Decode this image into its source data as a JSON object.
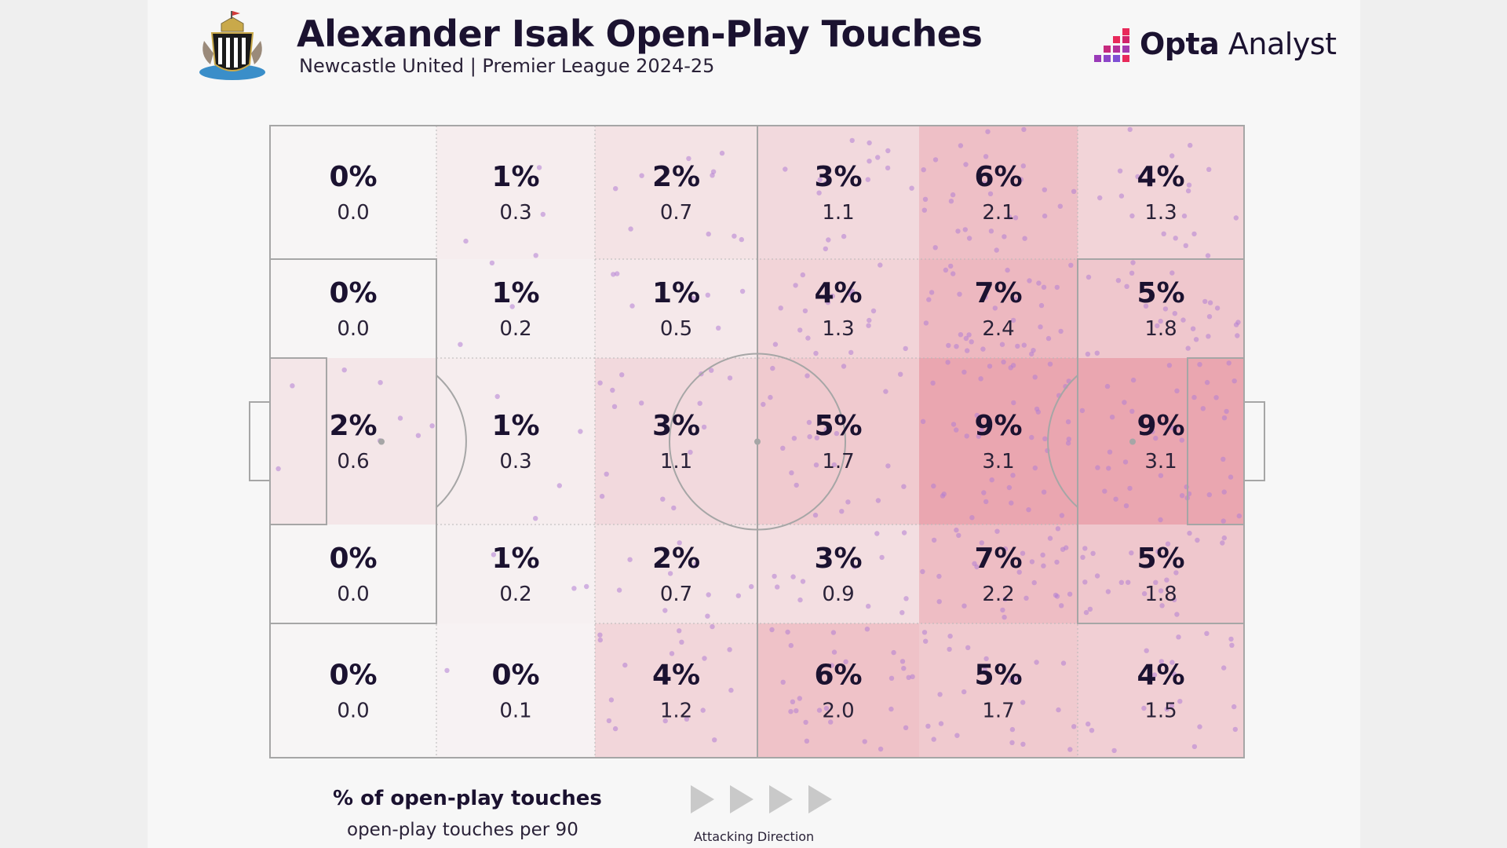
{
  "header": {
    "title": "Alexander Isak Open-Play Touches",
    "subtitle": "Newcastle United | Premier League 2024-25"
  },
  "brand": {
    "name_bold": "Opta",
    "name_light": " Analyst"
  },
  "legend": {
    "pct_label": "% of open-play touches",
    "per90_label": "open-play touches per 90",
    "direction_label": "Attacking Direction"
  },
  "colors": {
    "background": "#f7f7f7",
    "heat_low": "#f7f5f5",
    "heat_high": "#eaa6b0",
    "touch_dot": "#b27ed4",
    "pitch_lines": "#a6a6a6"
  },
  "chart_data": {
    "type": "heatmap",
    "title": "Alexander Isak Open-Play Touches",
    "subtitle": "Newcastle United | Premier League 2024-25",
    "columns": 6,
    "rows": 5,
    "attacking_direction": "left-to-right",
    "cells": [
      [
        {
          "pct": "0%",
          "per90": "0.0"
        },
        {
          "pct": "1%",
          "per90": "0.3"
        },
        {
          "pct": "2%",
          "per90": "0.7"
        },
        {
          "pct": "3%",
          "per90": "1.1"
        },
        {
          "pct": "6%",
          "per90": "2.1"
        },
        {
          "pct": "4%",
          "per90": "1.3"
        }
      ],
      [
        {
          "pct": "0%",
          "per90": "0.0"
        },
        {
          "pct": "1%",
          "per90": "0.2"
        },
        {
          "pct": "1%",
          "per90": "0.5"
        },
        {
          "pct": "4%",
          "per90": "1.3"
        },
        {
          "pct": "7%",
          "per90": "2.4"
        },
        {
          "pct": "5%",
          "per90": "1.8"
        }
      ],
      [
        {
          "pct": "2%",
          "per90": "0.6"
        },
        {
          "pct": "1%",
          "per90": "0.3"
        },
        {
          "pct": "3%",
          "per90": "1.1"
        },
        {
          "pct": "5%",
          "per90": "1.7"
        },
        {
          "pct": "9%",
          "per90": "3.1"
        },
        {
          "pct": "9%",
          "per90": "3.1"
        }
      ],
      [
        {
          "pct": "0%",
          "per90": "0.0"
        },
        {
          "pct": "1%",
          "per90": "0.2"
        },
        {
          "pct": "2%",
          "per90": "0.7"
        },
        {
          "pct": "3%",
          "per90": "0.9"
        },
        {
          "pct": "7%",
          "per90": "2.2"
        },
        {
          "pct": "5%",
          "per90": "1.8"
        }
      ],
      [
        {
          "pct": "0%",
          "per90": "0.0"
        },
        {
          "pct": "0%",
          "per90": "0.1"
        },
        {
          "pct": "4%",
          "per90": "1.2"
        },
        {
          "pct": "6%",
          "per90": "2.0"
        },
        {
          "pct": "5%",
          "per90": "1.7"
        },
        {
          "pct": "4%",
          "per90": "1.5"
        }
      ]
    ],
    "legend": [
      "% of open-play touches",
      "open-play touches per 90"
    ]
  }
}
